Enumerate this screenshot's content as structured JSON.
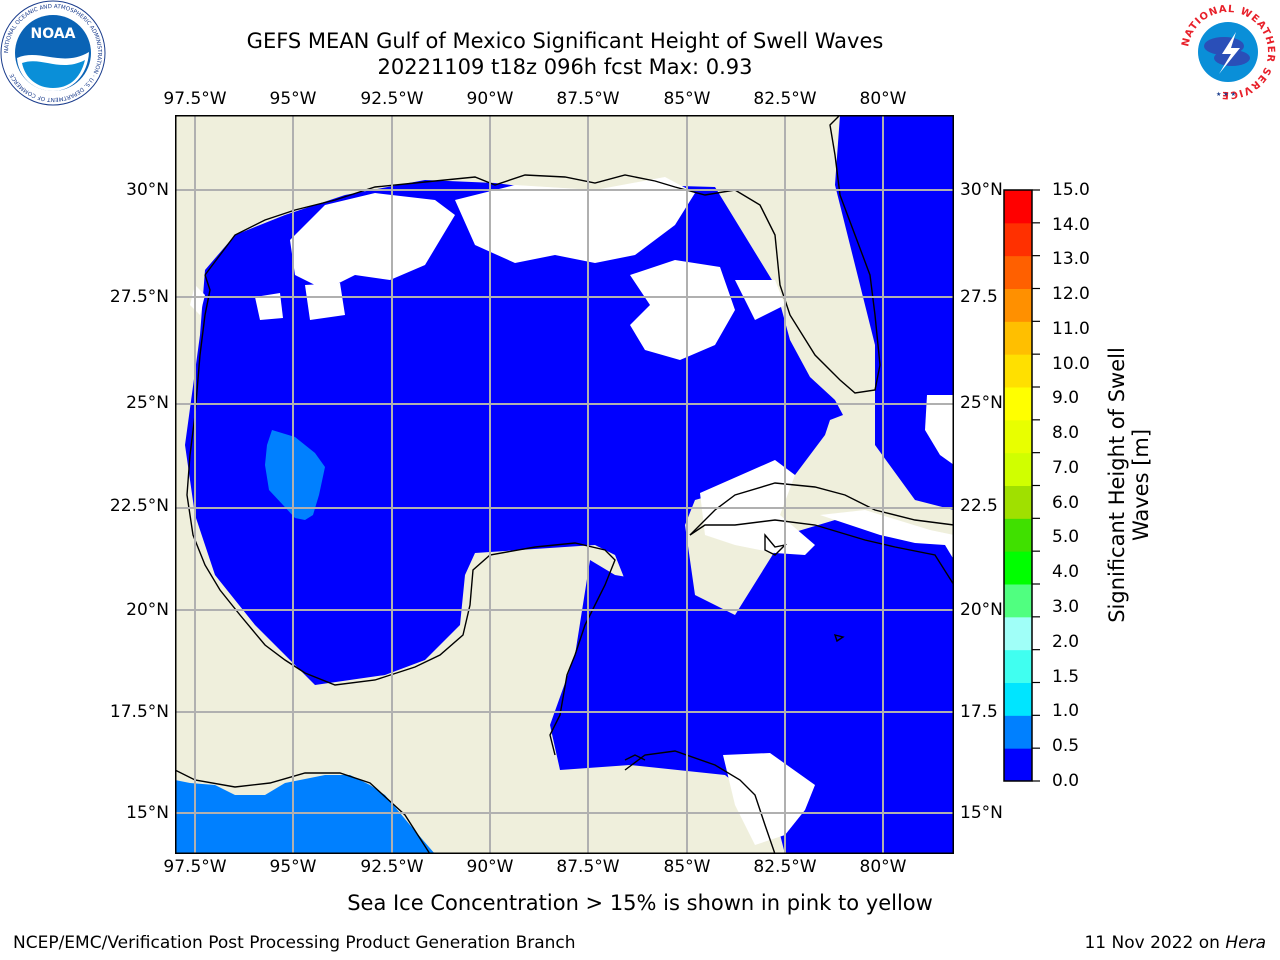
{
  "title": "GEFS MEAN Gulf of Mexico Significant Height of Swell Waves",
  "subtitle": "20221109 t18z 096h fcst   Max: 0.93",
  "lon_ticks": [
    "97.5°W",
    "95°W",
    "92.5°W",
    "90°W",
    "87.5°W",
    "85°W",
    "82.5°W",
    "80°W"
  ],
  "lat_ticks": [
    "30°N",
    "27.5°N",
    "25°N",
    "22.5°N",
    "20°N",
    "17.5°N",
    "15°N"
  ],
  "right_lat_ticks": [
    "30°N",
    "27.5",
    "25°N",
    "22.5",
    "20°N",
    "17.5",
    "15°N"
  ],
  "colorbar": {
    "label": "Significant Height of Swell Waves [m]",
    "label_line1": "Significant Height of Swell",
    "label_line2": "Waves [m]",
    "ticks": [
      "15.0",
      "14.0",
      "13.0",
      "12.0",
      "11.0",
      "10.0",
      "9.0",
      "8.0",
      "7.0",
      "6.0",
      "5.0",
      "4.0",
      "3.0",
      "2.0",
      "1.5",
      "1.0",
      "0.5",
      "0.0"
    ],
    "colors": [
      "#0000ff",
      "#0080ff",
      "#00e5ff",
      "#40fff0",
      "#a0fff8",
      "#50ff80",
      "#00ff00",
      "#40e000",
      "#a0e000",
      "#d0ff00",
      "#e8ff00",
      "#ffff00",
      "#ffe000",
      "#ffbf00",
      "#ff9000",
      "#ff6000",
      "#ff3000",
      "#ff0000"
    ]
  },
  "colors": {
    "land": "#efefdc",
    "sea": "#0000ff",
    "no_data": "#ffffff",
    "swell_05": "#0080ff",
    "grid": "#b0b0b0"
  },
  "note": "Sea Ice Concentration > 15% is shown in pink to yellow",
  "footer_left": "NCEP/EMC/Verification Post Processing Product Generation Branch",
  "footer_date": "11 Nov 2022 on ",
  "footer_host": "Hera",
  "logos": {
    "left": "NOAA",
    "left_ring": "NATIONAL OCEANIC AND ATMOSPHERIC ADMINISTRATION · U.S. DEPARTMENT OF COMMERCE",
    "right": "NATIONAL WEATHER SERVICE"
  }
}
